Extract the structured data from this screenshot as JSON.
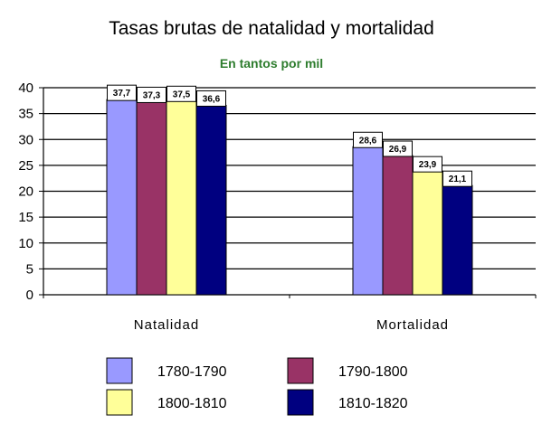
{
  "chart_data": {
    "type": "bar",
    "title": "Tasas brutas de natalidad y mortalidad",
    "subtitle": "En tantos por mil",
    "categories": [
      "Natalidad",
      "Mortalidad"
    ],
    "series": [
      {
        "name": "1780-1790",
        "values": [
          37.7,
          28.6
        ],
        "labels": [
          "37,7",
          "28,6"
        ],
        "color": "#9999ff"
      },
      {
        "name": "1790-1800",
        "values": [
          37.3,
          26.9
        ],
        "labels": [
          "37,3",
          "26,9"
        ],
        "color": "#993366"
      },
      {
        "name": "1800-1810",
        "values": [
          37.5,
          23.9
        ],
        "labels": [
          "37,5",
          "23,9"
        ],
        "color": "#ffff99"
      },
      {
        "name": "1810-1820",
        "values": [
          36.6,
          21.1
        ],
        "labels": [
          "36,6",
          "21,1"
        ],
        "color": "#000080"
      }
    ],
    "ylim": [
      0,
      40
    ],
    "yticks": [
      0,
      5,
      10,
      15,
      20,
      25,
      30,
      35,
      40
    ],
    "grid": true,
    "legend_position": "bottom"
  }
}
